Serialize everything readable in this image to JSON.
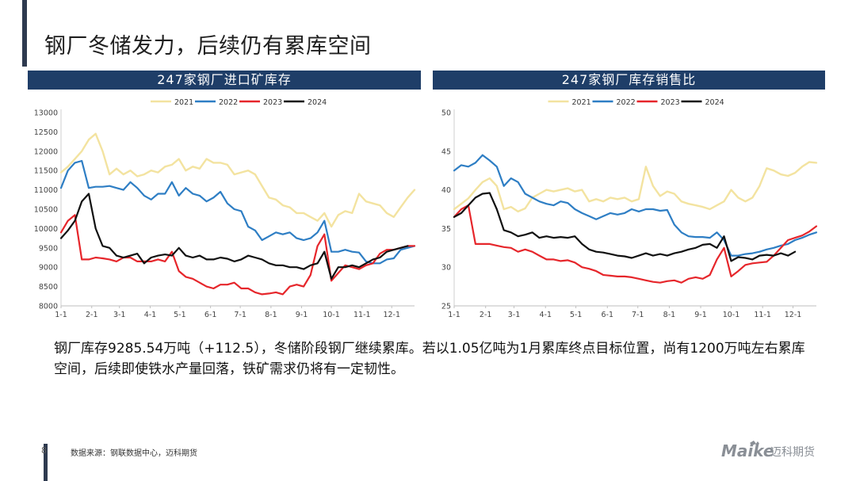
{
  "title": "钢厂冬储发力，后续仍有累库空间",
  "body_text": "钢厂库存9285.54万吨（+112.5），冬储阶段钢厂继续累库。若以1.05亿吨为1月累库终点目标位置，尚有1200万吨左右累库空间，后续即使铁水产量回落，铁矿需求仍将有一定韧性。",
  "page_number": "8",
  "source": "数据来源：钢联数据中心，迈科期货",
  "brand": {
    "wordmark": "Maike",
    "name": "迈科期货"
  },
  "colors": {
    "header_bg": "#1f3e68",
    "accent_bar": "#2e3a4f",
    "s2021": "#f3e3a0",
    "s2022": "#2e7ec4",
    "s2023": "#e6262b",
    "s2024": "#111111"
  },
  "chart_data": [
    {
      "type": "line",
      "title": "247家钢厂进口矿库存",
      "xlabel": "",
      "ylabel": "",
      "ylim": [
        8000,
        13000
      ],
      "yticks": [
        8000,
        8500,
        9000,
        9500,
        10000,
        10500,
        11000,
        11500,
        12000,
        12500,
        13000
      ],
      "x_tick_labels": [
        "1-1",
        "2-1",
        "3-1",
        "4-1",
        "5-1",
        "6-1",
        "7-1",
        "8-1",
        "9-1",
        "10-1",
        "11-1",
        "12-1"
      ],
      "grid": false,
      "legend": "top",
      "series": [
        {
          "name": "2021",
          "values": [
            11450,
            11600,
            11800,
            12000,
            12300,
            12450,
            12000,
            11400,
            11550,
            11400,
            11500,
            11350,
            11400,
            11500,
            11450,
            11600,
            11650,
            11800,
            11500,
            11600,
            11550,
            11800,
            11700,
            11700,
            11650,
            11400,
            11450,
            11500,
            11400,
            11100,
            10800,
            10750,
            10600,
            10550,
            10400,
            10400,
            10300,
            10200,
            10400,
            10050,
            10350,
            10450,
            10400,
            10900,
            10700,
            10650,
            10600,
            10400,
            10300,
            10550,
            10800,
            11000
          ]
        },
        {
          "name": "2022",
          "values": [
            11050,
            11500,
            11700,
            11750,
            11050,
            11080,
            11080,
            11100,
            11050,
            11000,
            11200,
            11050,
            10850,
            10750,
            10900,
            10900,
            11200,
            10850,
            11050,
            10900,
            10850,
            10700,
            10800,
            10950,
            10650,
            10500,
            10450,
            10050,
            9950,
            9700,
            9800,
            9900,
            9850,
            9900,
            9750,
            9700,
            9750,
            9900,
            10200,
            9400,
            9400,
            9450,
            9400,
            9380,
            9150,
            9100,
            9100,
            9200,
            9230,
            9450,
            9500,
            9550
          ]
        },
        {
          "name": "2023",
          "values": [
            9900,
            10200,
            10350,
            9200,
            9200,
            9250,
            9230,
            9200,
            9150,
            9250,
            9250,
            9150,
            9150,
            9150,
            9200,
            9150,
            9400,
            8900,
            8750,
            8700,
            8600,
            8500,
            8450,
            8550,
            8550,
            8600,
            8450,
            8450,
            8350,
            8300,
            8320,
            8350,
            8300,
            8500,
            8550,
            8500,
            8800,
            9550,
            9850,
            8650,
            8850,
            9050,
            9000,
            8950,
            9050,
            9100,
            9350,
            9450,
            9450,
            9500,
            9550,
            9550
          ]
        },
        {
          "name": "2024",
          "values": [
            9750,
            9950,
            10200,
            10700,
            10900,
            10000,
            9550,
            9500,
            9300,
            9250,
            9300,
            9350,
            9100,
            9250,
            9300,
            9330,
            9300,
            9500,
            9300,
            9250,
            9300,
            9200,
            9200,
            9250,
            9220,
            9150,
            9200,
            9300,
            9250,
            9200,
            9100,
            9050,
            9050,
            9000,
            9000,
            8950,
            9050,
            9100,
            9400,
            8700,
            9000,
            9000,
            9050,
            9000,
            9100,
            9200,
            9250,
            9400,
            9450,
            9500,
            9550
          ]
        }
      ]
    },
    {
      "type": "line",
      "title": "247家钢厂库存销售比",
      "xlabel": "",
      "ylabel": "",
      "ylim": [
        25,
        50
      ],
      "yticks": [
        25,
        30,
        35,
        40,
        45,
        50
      ],
      "x_tick_labels": [
        "1-1",
        "2-1",
        "3-1",
        "4-1",
        "5-1",
        "6-1",
        "7-1",
        "8-1",
        "9-1",
        "10-1",
        "11-1",
        "12-1"
      ],
      "grid": false,
      "legend": "top",
      "series": [
        {
          "name": "2021",
          "values": [
            37.5,
            38.2,
            38.9,
            40.0,
            41.0,
            41.5,
            40.5,
            37.5,
            37.8,
            37.2,
            37.6,
            39.0,
            39.5,
            40.0,
            39.8,
            40.0,
            40.2,
            39.8,
            40.0,
            38.5,
            38.8,
            38.5,
            39.0,
            38.8,
            39.0,
            38.5,
            38.8,
            43.0,
            40.5,
            39.2,
            39.8,
            39.5,
            38.5,
            38.2,
            38.0,
            37.8,
            37.5,
            38.0,
            38.5,
            40.0,
            39.0,
            38.5,
            39.0,
            40.5,
            42.8,
            42.5,
            42.0,
            41.8,
            42.2,
            43.0,
            43.6,
            43.5
          ]
        },
        {
          "name": "2022",
          "values": [
            42.5,
            43.2,
            43.0,
            43.5,
            44.5,
            43.8,
            43.0,
            40.5,
            41.5,
            41.0,
            39.5,
            39.0,
            38.5,
            38.2,
            38.0,
            38.5,
            38.3,
            37.5,
            37.0,
            36.6,
            36.2,
            36.6,
            37.0,
            36.8,
            37.0,
            37.5,
            37.2,
            37.5,
            37.5,
            37.3,
            37.4,
            35.5,
            34.5,
            34.0,
            33.9,
            33.9,
            33.8,
            34.5,
            33.5,
            31.5,
            31.5,
            31.7,
            31.8,
            32.0,
            32.3,
            32.5,
            32.8,
            33.0,
            33.5,
            33.8,
            34.2,
            34.5
          ]
        },
        {
          "name": "2023",
          "values": [
            36.5,
            37.5,
            38.0,
            33.0,
            33.0,
            33.0,
            32.8,
            32.6,
            32.5,
            32.0,
            32.3,
            32.0,
            31.5,
            31.0,
            31.0,
            30.8,
            30.9,
            30.6,
            30.0,
            29.8,
            29.5,
            29.0,
            28.9,
            28.8,
            28.8,
            28.7,
            28.5,
            28.3,
            28.1,
            28.0,
            28.2,
            28.3,
            28.0,
            28.5,
            28.7,
            28.5,
            29.0,
            31.0,
            32.5,
            28.8,
            29.5,
            30.3,
            30.5,
            30.6,
            30.7,
            31.5,
            32.5,
            33.5,
            33.8,
            34.1,
            34.6,
            35.3
          ]
        },
        {
          "name": "2024",
          "values": [
            36.5,
            37.0,
            38.0,
            39.0,
            39.5,
            39.6,
            37.5,
            34.8,
            34.5,
            34.0,
            34.2,
            34.5,
            33.8,
            34.0,
            33.8,
            33.9,
            33.8,
            34.0,
            33.0,
            32.3,
            32.0,
            31.9,
            31.7,
            31.5,
            31.4,
            31.2,
            31.5,
            31.8,
            31.5,
            31.7,
            31.5,
            31.8,
            32.0,
            32.3,
            32.5,
            32.9,
            33.0,
            32.5,
            34.0,
            30.8,
            31.3,
            31.2,
            31.0,
            31.5,
            31.6,
            31.5,
            31.8,
            31.5,
            32.0
          ]
        }
      ]
    }
  ]
}
